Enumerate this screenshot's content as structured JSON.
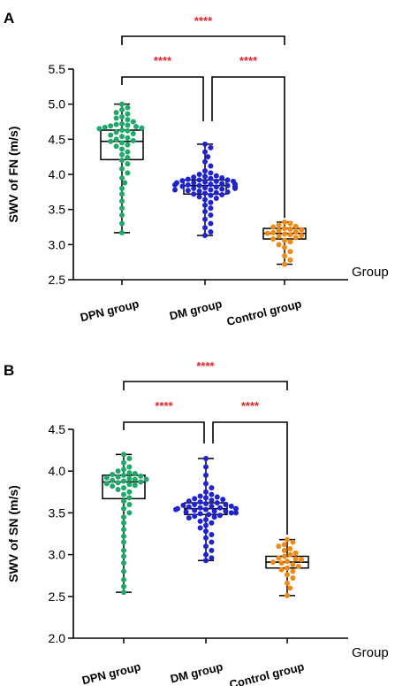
{
  "chart_data": [
    {
      "panel": "A",
      "type": "box-scatter",
      "xlabel": "Group",
      "ylabel": "SWV of FN (m/s)",
      "ylim": [
        2.5,
        5.5
      ],
      "yticks": [
        "2.5",
        "3.0",
        "3.5",
        "4.0",
        "4.5",
        "5.0",
        "5.5"
      ],
      "categories": [
        "DPN group",
        "DM group",
        "Control group"
      ],
      "boxes": [
        {
          "min": 3.17,
          "q1": 4.21,
          "median": 4.47,
          "q3": 4.63,
          "max": 5.0
        },
        {
          "min": 3.13,
          "q1": 3.72,
          "median": 3.84,
          "q3": 3.92,
          "max": 4.43
        },
        {
          "min": 2.72,
          "q1": 3.08,
          "median": 3.16,
          "q3": 3.23,
          "max": 3.32
        }
      ],
      "points": [
        [
          5.0,
          4.95,
          4.92,
          4.88,
          4.86,
          4.82,
          4.8,
          4.78,
          4.75,
          4.72,
          4.71,
          4.7,
          4.69,
          4.68,
          4.67,
          4.66,
          4.65,
          4.63,
          4.62,
          4.6,
          4.58,
          4.56,
          4.54,
          4.52,
          4.5,
          4.48,
          4.47,
          4.45,
          4.42,
          4.4,
          4.36,
          4.32,
          4.28,
          4.24,
          4.2,
          4.15,
          4.08,
          4.02,
          3.95,
          3.88,
          3.8,
          3.72,
          3.62,
          3.52,
          3.42,
          3.3,
          3.17
        ],
        [
          4.43,
          4.38,
          4.32,
          4.25,
          4.18,
          4.12,
          4.05,
          4.02,
          4.0,
          3.98,
          3.97,
          3.96,
          3.95,
          3.94,
          3.93,
          3.92,
          3.92,
          3.91,
          3.9,
          3.9,
          3.89,
          3.88,
          3.88,
          3.87,
          3.86,
          3.86,
          3.85,
          3.85,
          3.84,
          3.84,
          3.83,
          3.83,
          3.82,
          3.82,
          3.81,
          3.8,
          3.8,
          3.79,
          3.78,
          3.78,
          3.77,
          3.76,
          3.75,
          3.74,
          3.73,
          3.72,
          3.71,
          3.7,
          3.68,
          3.66,
          3.64,
          3.6,
          3.56,
          3.52,
          3.47,
          3.42,
          3.36,
          3.3,
          3.24,
          3.18,
          3.13
        ],
        [
          3.32,
          3.3,
          3.28,
          3.26,
          3.25,
          3.23,
          3.22,
          3.21,
          3.2,
          3.18,
          3.17,
          3.16,
          3.15,
          3.14,
          3.13,
          3.12,
          3.1,
          3.08,
          3.06,
          3.04,
          3.0,
          2.96,
          2.9,
          2.84,
          2.78,
          2.72
        ]
      ],
      "comparisons": [
        {
          "from": 0,
          "to": 2,
          "label": "****"
        },
        {
          "from": 0,
          "to": 1,
          "label": "****"
        },
        {
          "from": 1,
          "to": 2,
          "label": "****"
        }
      ]
    },
    {
      "panel": "B",
      "type": "box-scatter",
      "xlabel": "Group",
      "ylabel": "SWV of SN (m/s)",
      "ylim": [
        2.0,
        4.5
      ],
      "yticks": [
        "2.0",
        "2.5",
        "3.0",
        "3.5",
        "4.0",
        "4.5"
      ],
      "categories": [
        "DPN group",
        "DM group",
        "Control group"
      ],
      "boxes": [
        {
          "min": 2.55,
          "q1": 3.67,
          "median": 3.87,
          "q3": 3.95,
          "max": 4.2
        },
        {
          "min": 2.93,
          "q1": 3.48,
          "median": 3.55,
          "q3": 3.62,
          "max": 4.15
        },
        {
          "min": 2.51,
          "q1": 2.84,
          "median": 2.91,
          "q3": 2.98,
          "max": 3.18
        }
      ],
      "points": [
        [
          4.2,
          4.15,
          4.1,
          4.05,
          4.02,
          4.0,
          3.98,
          3.97,
          3.96,
          3.95,
          3.94,
          3.93,
          3.92,
          3.91,
          3.9,
          3.9,
          3.89,
          3.88,
          3.87,
          3.86,
          3.85,
          3.84,
          3.83,
          3.82,
          3.8,
          3.78,
          3.75,
          3.72,
          3.68,
          3.64,
          3.6,
          3.55,
          3.5,
          3.45,
          3.38,
          3.3,
          3.22,
          3.15,
          3.05,
          2.98,
          2.9,
          2.8,
          2.7,
          2.62,
          2.55
        ],
        [
          4.15,
          4.05,
          3.95,
          3.85,
          3.8,
          3.75,
          3.72,
          3.7,
          3.69,
          3.68,
          3.67,
          3.66,
          3.65,
          3.64,
          3.63,
          3.62,
          3.61,
          3.6,
          3.6,
          3.59,
          3.58,
          3.58,
          3.57,
          3.56,
          3.56,
          3.55,
          3.55,
          3.54,
          3.54,
          3.53,
          3.52,
          3.52,
          3.51,
          3.5,
          3.5,
          3.49,
          3.48,
          3.47,
          3.46,
          3.45,
          3.44,
          3.42,
          3.4,
          3.38,
          3.35,
          3.32,
          3.28,
          3.24,
          3.2,
          3.15,
          3.1,
          3.05,
          3.0,
          2.96,
          2.93
        ],
        [
          3.18,
          3.15,
          3.12,
          3.1,
          3.07,
          3.05,
          3.02,
          3.0,
          2.98,
          2.96,
          2.95,
          2.94,
          2.92,
          2.91,
          2.9,
          2.88,
          2.86,
          2.84,
          2.82,
          2.8,
          2.76,
          2.72,
          2.66,
          2.6,
          2.51
        ]
      ],
      "comparisons": [
        {
          "from": 0,
          "to": 2,
          "label": "****"
        },
        {
          "from": 0,
          "to": 1,
          "label": "****"
        },
        {
          "from": 1,
          "to": 2,
          "label": "****"
        }
      ]
    }
  ],
  "colors": {
    "dpn": "#1fa86a",
    "dm": "#1f22d0",
    "control": "#f08a14",
    "significance": "#e8202a",
    "axis": "#000000"
  }
}
